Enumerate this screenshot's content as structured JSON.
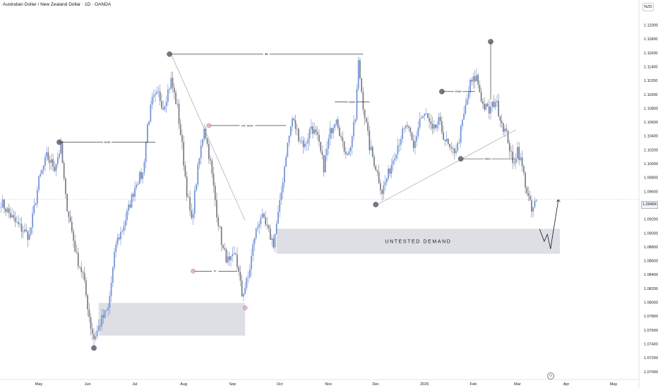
{
  "header": {
    "title": "Australian Dollar / New Zealand Dollar · 1D · OANDA",
    "currency": "NZD",
    "current_price": "1.09484"
  },
  "colors": {
    "bull": "#6f8fd8",
    "bear": "#787b86",
    "zone": "#d1d4dc",
    "line": "#131722",
    "marker_gray": "#5d606b",
    "marker_pink": "#d8a6b4"
  },
  "chart_data": {
    "type": "candlestick",
    "symbol": "AUDNZD",
    "timeframe": "1D",
    "ylim": [
      1.07,
      1.124
    ],
    "y_ticks": [
      "1.12000",
      "1.11800",
      "1.11600",
      "1.11400",
      "1.11200",
      "1.11000",
      "1.10800",
      "1.10600",
      "1.10400",
      "1.10200",
      "1.10000",
      "1.09800",
      "1.09600",
      "1.09400",
      "1.09200",
      "1.09000",
      "1.08800",
      "1.08600",
      "1.08400",
      "1.08200",
      "1.08000",
      "1.07800",
      "1.07600",
      "1.07400",
      "1.07200",
      "1.07000"
    ],
    "x_ticks": [
      {
        "label": "May",
        "day": 0
      },
      {
        "label": "Jun",
        "day": 31
      },
      {
        "label": "Jul",
        "day": 61
      },
      {
        "label": "Aug",
        "day": 92
      },
      {
        "label": "Sep",
        "day": 123
      },
      {
        "label": "Oct",
        "day": 153
      },
      {
        "label": "Nov",
        "day": 184
      },
      {
        "label": "Dec",
        "day": 214
      },
      {
        "label": "2025",
        "day": 245
      },
      {
        "label": "Feb",
        "day": 276
      },
      {
        "label": "Mar",
        "day": 304
      },
      {
        "label": "Apr",
        "day": 335
      },
      {
        "label": "May",
        "day": 365
      }
    ],
    "anchors": [
      {
        "day": -24,
        "price": 1.0945
      },
      {
        "day": -15,
        "price": 1.0915
      },
      {
        "day": -6,
        "price": 1.0895
      },
      {
        "day": 0,
        "price": 1.0975
      },
      {
        "day": 5,
        "price": 1.101
      },
      {
        "day": 10,
        "price": 1.0995
      },
      {
        "day": 14,
        "price": 1.1025
      },
      {
        "day": 17,
        "price": 1.095
      },
      {
        "day": 20,
        "price": 1.0915
      },
      {
        "day": 24,
        "price": 1.0865
      },
      {
        "day": 28,
        "price": 1.084
      },
      {
        "day": 33,
        "price": 1.0765
      },
      {
        "day": 35,
        "price": 1.0748
      },
      {
        "day": 40,
        "price": 1.0775
      },
      {
        "day": 44,
        "price": 1.079
      },
      {
        "day": 49,
        "price": 1.0885
      },
      {
        "day": 53,
        "price": 1.0905
      },
      {
        "day": 57,
        "price": 1.0935
      },
      {
        "day": 62,
        "price": 1.0975
      },
      {
        "day": 66,
        "price": 1.0985
      },
      {
        "day": 69,
        "price": 1.1055
      },
      {
        "day": 72,
        "price": 1.109
      },
      {
        "day": 76,
        "price": 1.11
      },
      {
        "day": 79,
        "price": 1.1082
      },
      {
        "day": 84,
        "price": 1.112
      },
      {
        "day": 88,
        "price": 1.108
      },
      {
        "day": 91,
        "price": 1.1025
      },
      {
        "day": 94,
        "price": 1.096
      },
      {
        "day": 97,
        "price": 1.0915
      },
      {
        "day": 100,
        "price": 1.0975
      },
      {
        "day": 105,
        "price": 1.1055
      },
      {
        "day": 109,
        "price": 1.1
      },
      {
        "day": 113,
        "price": 1.093
      },
      {
        "day": 117,
        "price": 1.0875
      },
      {
        "day": 121,
        "price": 1.0855
      },
      {
        "day": 125,
        "price": 1.087
      },
      {
        "day": 129,
        "price": 1.081
      },
      {
        "day": 133,
        "price": 1.0835
      },
      {
        "day": 137,
        "price": 1.0895
      },
      {
        "day": 141,
        "price": 1.0925
      },
      {
        "day": 145,
        "price": 1.0905
      },
      {
        "day": 149,
        "price": 1.0885
      },
      {
        "day": 153,
        "price": 1.094
      },
      {
        "day": 157,
        "price": 1.1015
      },
      {
        "day": 161,
        "price": 1.1065
      },
      {
        "day": 165,
        "price": 1.104
      },
      {
        "day": 169,
        "price": 1.1025
      },
      {
        "day": 173,
        "price": 1.1055
      },
      {
        "day": 177,
        "price": 1.1035
      },
      {
        "day": 181,
        "price": 1.0995
      },
      {
        "day": 185,
        "price": 1.1045
      },
      {
        "day": 189,
        "price": 1.107
      },
      {
        "day": 193,
        "price": 1.1025
      },
      {
        "day": 197,
        "price": 1.1015
      },
      {
        "day": 201,
        "price": 1.1065
      },
      {
        "day": 203,
        "price": 1.1145
      },
      {
        "day": 206,
        "price": 1.1085
      },
      {
        "day": 210,
        "price": 1.1025
      },
      {
        "day": 214,
        "price": 1.0995
      },
      {
        "day": 218,
        "price": 1.096
      },
      {
        "day": 222,
        "price": 1.0985
      },
      {
        "day": 226,
        "price": 1.1015
      },
      {
        "day": 230,
        "price": 1.104
      },
      {
        "day": 234,
        "price": 1.1055
      },
      {
        "day": 238,
        "price": 1.102
      },
      {
        "day": 242,
        "price": 1.1065
      },
      {
        "day": 246,
        "price": 1.107
      },
      {
        "day": 250,
        "price": 1.1045
      },
      {
        "day": 254,
        "price": 1.106
      },
      {
        "day": 258,
        "price": 1.1035
      },
      {
        "day": 262,
        "price": 1.1015
      },
      {
        "day": 266,
        "price": 1.1025
      },
      {
        "day": 270,
        "price": 1.107
      },
      {
        "day": 274,
        "price": 1.1115
      },
      {
        "day": 278,
        "price": 1.1125
      },
      {
        "day": 282,
        "price": 1.1085
      },
      {
        "day": 286,
        "price": 1.1075
      },
      {
        "day": 290,
        "price": 1.1092
      },
      {
        "day": 294,
        "price": 1.106
      },
      {
        "day": 298,
        "price": 1.1035
      },
      {
        "day": 301,
        "price": 1.0998
      },
      {
        "day": 304,
        "price": 1.1022
      },
      {
        "day": 307,
        "price": 1.0995
      },
      {
        "day": 310,
        "price": 1.096
      },
      {
        "day": 313,
        "price": 1.093
      },
      {
        "day": 316,
        "price": 1.0948
      }
    ],
    "zones": [
      {
        "label": "UNTESTED DEMAND",
        "from_day": 151,
        "to_day": 331,
        "top": 1.0906,
        "bottom": 1.087
      },
      {
        "label": "",
        "from_day": 38,
        "to_day": 131,
        "top": 1.0799,
        "bottom": 1.0752
      }
    ],
    "levels": [
      {
        "label": "$$",
        "from_day": 83,
        "to_day": 206,
        "price": 1.1158
      },
      {
        "label": "EMS",
        "from_day": 13,
        "to_day": 74,
        "price": 1.1031
      },
      {
        "label": "MT. MSS",
        "from_day": 108,
        "to_day": 157,
        "price": 1.1055
      },
      {
        "label": "EMS",
        "from_day": 188,
        "to_day": 210,
        "price": 1.1089
      },
      {
        "label": "EMS",
        "from_day": 256,
        "to_day": 277,
        "price": 1.1104
      },
      {
        "label": "MSS",
        "from_day": 268,
        "to_day": 302,
        "price": 1.1007
      },
      {
        "label": "IF",
        "from_day": 98,
        "to_day": 126,
        "price": 1.0845
      }
    ],
    "trendlines": [
      {
        "from_day": 215,
        "from_price": 1.0941,
        "to_day": 303,
        "to_price": 1.1049
      },
      {
        "from_day": 84,
        "from_price": 1.1158,
        "to_day": 131,
        "to_price": 1.0918
      }
    ],
    "markers": [
      {
        "day": 83,
        "price": 1.1158,
        "kind": "gray"
      },
      {
        "day": 13,
        "price": 1.1031,
        "kind": "gray"
      },
      {
        "day": 35,
        "price": 1.0734,
        "kind": "gray"
      },
      {
        "day": 214,
        "price": 1.0941,
        "kind": "gray"
      },
      {
        "day": 256,
        "price": 1.1104,
        "kind": "gray"
      },
      {
        "day": 268,
        "price": 1.1007,
        "kind": "gray"
      },
      {
        "day": 287,
        "price": 1.1176,
        "kind": "gray"
      },
      {
        "day": 108,
        "price": 1.1055,
        "kind": "pink"
      },
      {
        "day": 98,
        "price": 1.0845,
        "kind": "pink"
      },
      {
        "day": 131,
        "price": 1.0792,
        "kind": "pink"
      }
    ],
    "projection": [
      {
        "day": 318,
        "price": 1.0906
      },
      {
        "day": 321,
        "price": 1.0888
      },
      {
        "day": 323,
        "price": 1.0898
      },
      {
        "day": 325,
        "price": 1.0877
      },
      {
        "day": 330,
        "price": 1.0948
      }
    ]
  }
}
